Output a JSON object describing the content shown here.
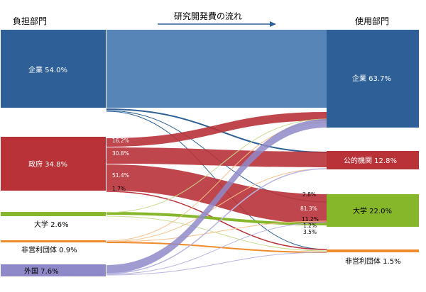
{
  "header": {
    "source_title": "負担部門",
    "flow_title": "研究開発費の流れ",
    "use_title": "使用部門"
  },
  "colors": {
    "company": "#2e5f96",
    "company_flow": "#4f7eb3",
    "government": "#b83238",
    "university": "#86b62a",
    "nonprofit": "#ef8b2c",
    "foreign": "#8f89c9",
    "arrow": "#2e5f96"
  },
  "sources": [
    {
      "id": "company",
      "label": "企業 54.0%"
    },
    {
      "id": "government",
      "label": "政府 34.8%"
    },
    {
      "id": "university",
      "label": "大学 2.6%"
    },
    {
      "id": "nonprofit",
      "label": "非営利団体 0.9%"
    },
    {
      "id": "foreign",
      "label": "外国 7.6%"
    }
  ],
  "uses": [
    {
      "id": "company",
      "label": "企業 63.7%"
    },
    {
      "id": "public",
      "label": "公的機関 12.8%"
    },
    {
      "id": "university",
      "label": "大学 22.0%"
    },
    {
      "id": "nonprofit",
      "label": "非営利団体 1.5%"
    }
  ],
  "flow_labels": {
    "gov_company": "16.2%",
    "gov_public": "30.8%",
    "gov_university": "51.4%",
    "gov_nonprofit": "1.7%",
    "into_univ_company": "2.8%",
    "into_univ_gov": "81.3%",
    "into_univ_foreign": "11.2%",
    "into_univ_nonprofit": "1.2%",
    "into_univ_university": "3.5%"
  }
}
